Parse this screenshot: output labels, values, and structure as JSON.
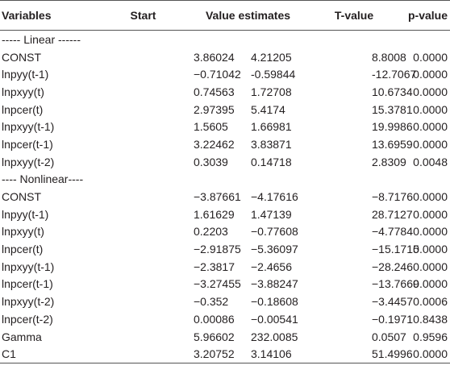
{
  "table": {
    "header": [
      "Variables",
      "Start",
      "Value estimates",
      "T-value",
      "p-value"
    ],
    "sections": [
      {
        "label": "----- Linear ------",
        "rows": [
          [
            "CONST",
            "3.86024",
            "4.21205",
            "8.8008",
            "0.0000"
          ],
          [
            "lnpyy(t-1)",
            "−0.71042",
            "-0.59844",
            "-12.7067",
            "0.0000"
          ],
          [
            "lnpxyy(t)",
            "0.74563",
            "1.72708",
            "10.6734",
            "0.0000"
          ],
          [
            "lnpcer(t)",
            "2.97395",
            "5.4174",
            "15.3781",
            "0.0000"
          ],
          [
            "lnpxyy(t-1)",
            "1.5605",
            "1.66981",
            "19.9986",
            "0.0000"
          ],
          [
            "lnpcer(t-1)",
            "3.22462",
            "3.83871",
            "13.6959",
            "0.0000"
          ],
          [
            "lnpxyy(t-2)",
            "0.3039",
            "0.14718",
            "2.8309",
            "0.0048"
          ]
        ]
      },
      {
        "label": "---- Nonlinear----",
        "rows": [
          [
            "CONST",
            "−3.87661",
            "−4.17616",
            "−8.7176",
            "0.0000"
          ],
          [
            "lnpyy(t-1)",
            "1.61629",
            "1.47139",
            "28.7127",
            "0.0000"
          ],
          [
            "lnpxyy(t)",
            "0.2203",
            "−0.77608",
            "−4.7784",
            "0.0000"
          ],
          [
            "lnpcer(t)",
            "−2.91875",
            "−5.36097",
            "−15.1715",
            "0.0000"
          ],
          [
            "lnpxyy(t-1)",
            "−2.3817",
            "−2.4656",
            "−28.246",
            "0.0000"
          ],
          [
            "lnpcer(t-1)",
            "−3.27455",
            "−3.88247",
            "−13.7669",
            "0.0000"
          ],
          [
            "lnpxyy(t-2)",
            "−0.352",
            "−0.18608",
            "−3.4457",
            "0.0006"
          ],
          [
            "lnpcer(t-2)",
            "0.00086",
            "−0.00541",
            "−0.1971",
            "0.8438"
          ],
          [
            "Gamma",
            "5.96602",
            "232.0085",
            "0.0507",
            "0.9596"
          ],
          [
            "C1",
            "3.20752",
            "3.14106",
            "51.4996",
            "0.0000"
          ]
        ]
      }
    ]
  }
}
